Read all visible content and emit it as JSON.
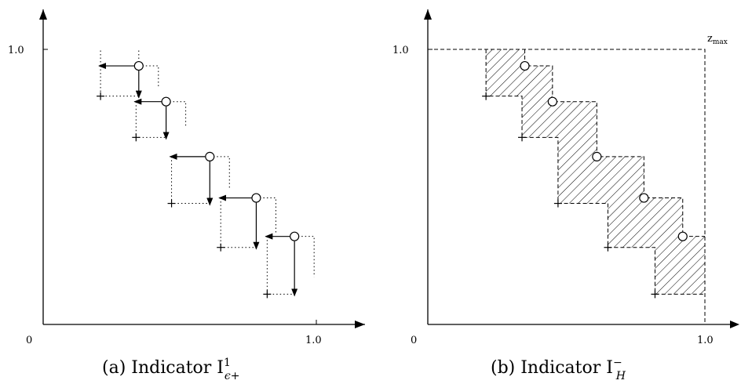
{
  "panels": [
    {
      "id": "a",
      "caption_prefix": "(a) Indicator I",
      "caption_sup": "1",
      "caption_sub": "ϵ+",
      "origin_label": "0",
      "x_tick_label": "1.0",
      "y_tick_label": "1.0",
      "circle_points": [
        [
          0.35,
          0.94
        ],
        [
          0.45,
          0.81
        ],
        [
          0.61,
          0.61
        ],
        [
          0.78,
          0.46
        ],
        [
          0.92,
          0.32
        ]
      ],
      "plus_points": [
        [
          0.21,
          0.83
        ],
        [
          0.34,
          0.68
        ],
        [
          0.47,
          0.44
        ],
        [
          0.65,
          0.28
        ],
        [
          0.82,
          0.11
        ]
      ]
    },
    {
      "id": "b",
      "caption_prefix": "(b) Indicator I",
      "caption_sup": "−",
      "caption_sub": "H",
      "origin_label": "0",
      "x_tick_label": "1.0",
      "y_tick_label": "1.0",
      "zmax_label": "z",
      "zmax_sub": "max",
      "circle_points": [
        [
          0.35,
          0.94
        ],
        [
          0.45,
          0.81
        ],
        [
          0.61,
          0.61
        ],
        [
          0.78,
          0.46
        ],
        [
          0.92,
          0.32
        ]
      ],
      "plus_points": [
        [
          0.21,
          0.83
        ],
        [
          0.34,
          0.68
        ],
        [
          0.47,
          0.44
        ],
        [
          0.65,
          0.28
        ],
        [
          0.82,
          0.11
        ]
      ]
    }
  ]
}
